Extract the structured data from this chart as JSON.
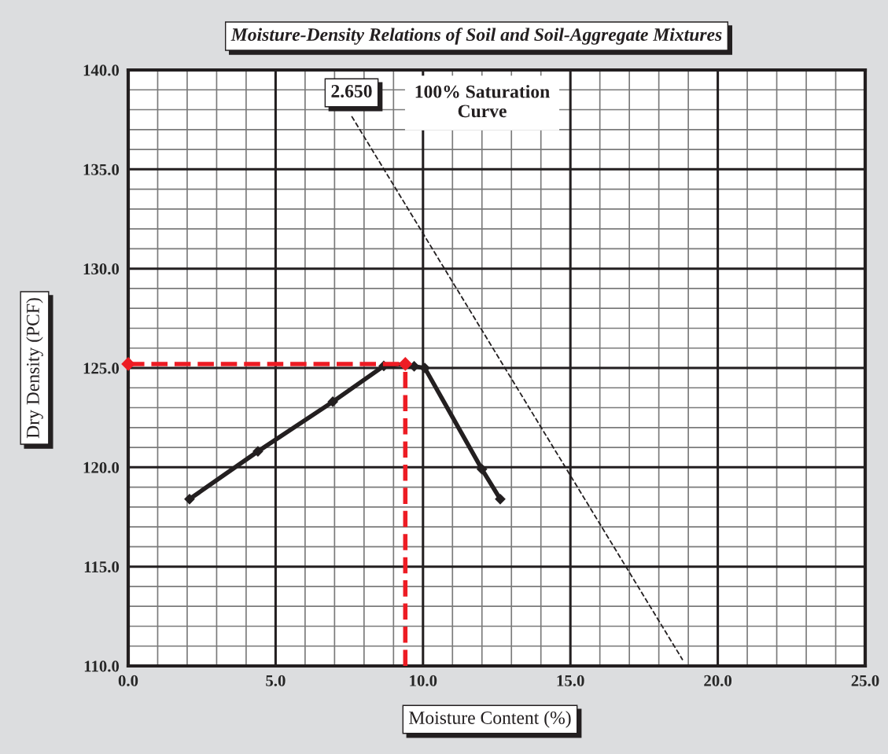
{
  "chart_data": {
    "type": "line",
    "title": "Moisture-Density Relations of Soil and Soil-Aggregate Mixtures",
    "xlabel": "Moisture Content (%)",
    "ylabel": "Dry Density (PCF)",
    "series": [
      {
        "color": "#231f20",
        "x": [
          2.08,
          4.4,
          6.94,
          8.67,
          9.4,
          9.7,
          10.06,
          12.0,
          12.62
        ],
        "values": [
          118.4,
          120.8,
          123.3,
          125.1,
          125.2,
          125.08,
          125.0,
          119.9,
          118.4
        ],
        "marker": "diamond",
        "line_style": "solid"
      },
      {
        "color": "#231f20",
        "x": [
          7.58,
          18.81
        ],
        "values": [
          137.67,
          110.3
        ],
        "marker": "none",
        "line_style": "dashed"
      },
      {
        "color": "#ed1c24",
        "x": [
          0,
          9.4
        ],
        "values": [
          125.2,
          125.2
        ],
        "marker": "diamond",
        "line_style": "dashed"
      },
      {
        "color": "#ed1c24",
        "x": [
          9.4,
          9.4
        ],
        "values": [
          110,
          125.2
        ],
        "marker": "none",
        "line_style": "dashed"
      }
    ],
    "xlim": [
      0,
      25
    ],
    "ylim": [
      110,
      140
    ],
    "xticks": [
      {
        "value": 0,
        "label": "0.0"
      },
      {
        "value": 5,
        "label": "5.0"
      },
      {
        "value": 10,
        "label": "10.0"
      },
      {
        "value": 15,
        "label": "15.0"
      },
      {
        "value": 20,
        "label": "20.0"
      },
      {
        "value": 25,
        "label": "25.0"
      }
    ],
    "yticks": [
      {
        "value": 110,
        "label": "110.0"
      },
      {
        "value": 115,
        "label": "115.0"
      },
      {
        "value": 120,
        "label": "120.0"
      },
      {
        "value": 125,
        "label": "125.0"
      },
      {
        "value": 130,
        "label": "130.0"
      },
      {
        "value": 135,
        "label": "135.0"
      },
      {
        "value": 140,
        "label": "140.0"
      }
    ],
    "grid": true,
    "annotations": [
      "2.650",
      "100% Saturation\nCurve"
    ]
  }
}
